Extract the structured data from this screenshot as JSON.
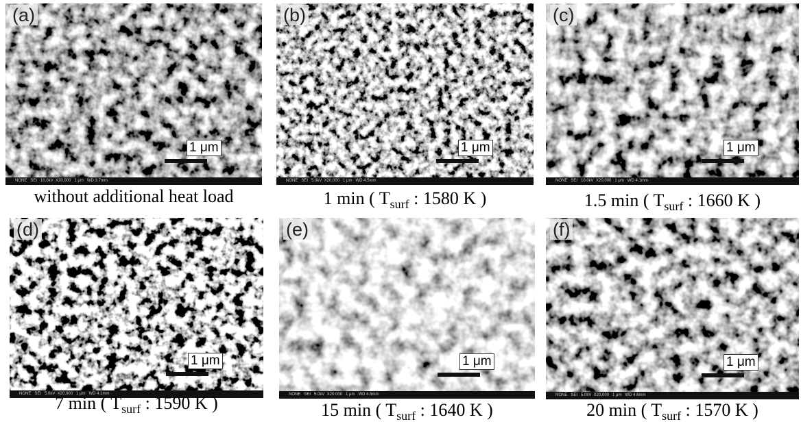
{
  "panels": [
    {
      "label": "(a)",
      "scale_bar": "1 μm",
      "info_bar": "NONE   SEI   10.0kV  X20,000   1 μm   WD 3.7mm",
      "caption": {
        "text": "without additional heat load"
      }
    },
    {
      "label": "(b)",
      "scale_bar": "1 μm",
      "info_bar": "NONE   SEI   5.0kV  X20,000   1 μm   WD 4.5mm",
      "caption": {
        "text": "1 min ( T",
        "subscript": "surf",
        "suffix": " : 1580 K )"
      }
    },
    {
      "label": "(c)",
      "scale_bar": "1 μm",
      "info_bar": "NONE   SEI   10.0kV  X20,000   1 μm   WD 4.1mm",
      "caption": {
        "text": "1.5 min ( T",
        "subscript": "surf",
        "suffix": " : 1660 K )"
      }
    },
    {
      "label": "(d)",
      "scale_bar": "1 μm",
      "info_bar": "NONE   SEI   5.0kV  X20,000   1 μm   WD 4.1mm",
      "caption": {
        "text": "7 min ( T",
        "subscript": "surf",
        "suffix": " : 1590 K )"
      }
    },
    {
      "label": "(e)",
      "scale_bar": "1 μm",
      "info_bar": "NONE   SEI   5.0kV  X20,000   1 μm   WD 4.6mm",
      "caption": {
        "text": "15 min ( T",
        "subscript": "surf",
        "suffix": " : 1640 K )"
      }
    },
    {
      "label": "(f)",
      "scale_bar": "1 μm",
      "info_bar": "NONE   SEI   5.0kV  X20,000   1 μm   WD 4.6mm",
      "caption": {
        "text": "20 min ( T",
        "subscript": "surf",
        "suffix": " : 1570 K )"
      }
    }
  ]
}
